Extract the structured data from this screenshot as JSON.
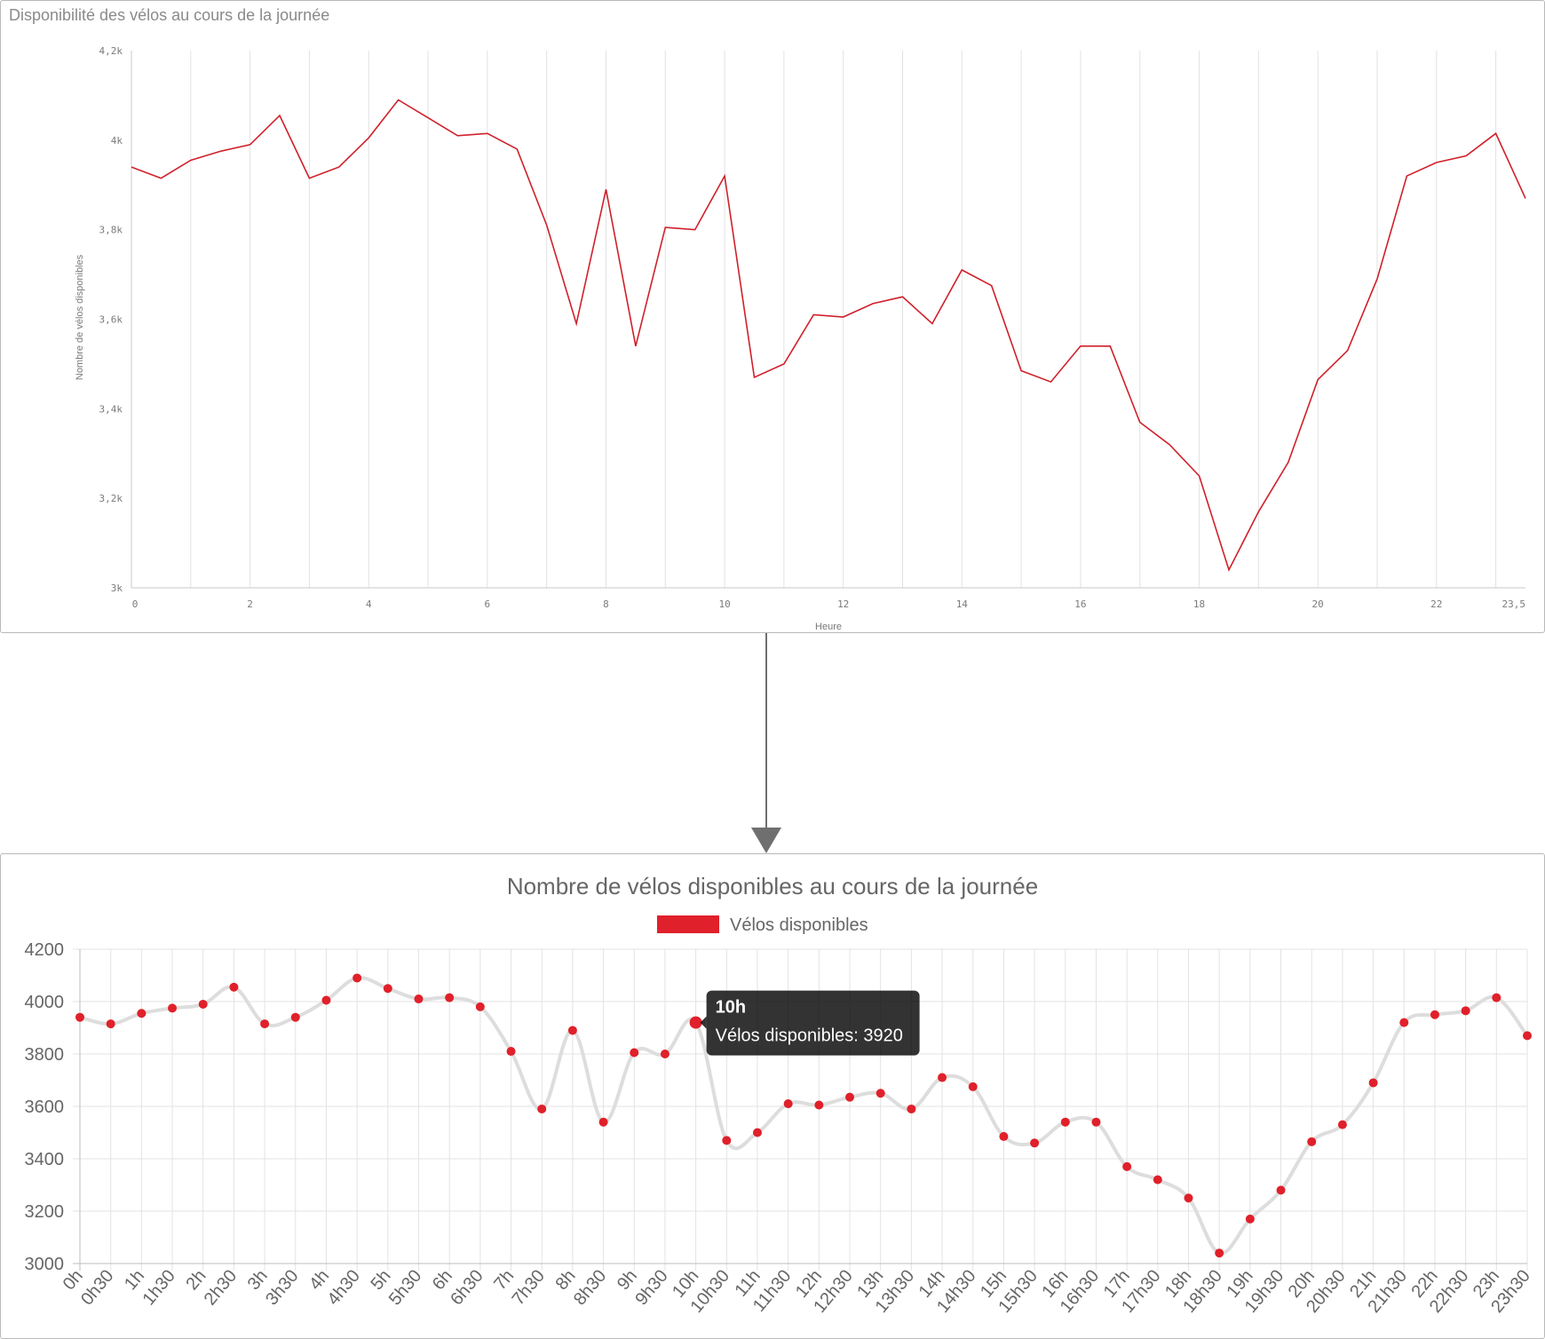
{
  "chart_data": [
    {
      "type": "line",
      "title": "Disponibilité des vélos au cours de la journée",
      "xlabel": "Heure",
      "ylabel": "Nombre de vélos disponibles",
      "xlim": [
        0,
        23.5
      ],
      "ylim": [
        3000,
        4200
      ],
      "x_ticks": [
        0,
        2,
        4,
        6,
        8,
        10,
        12,
        14,
        16,
        18,
        20,
        22,
        23.5
      ],
      "x_tick_labels": [
        "0",
        "2",
        "4",
        "6",
        "8",
        "10",
        "12",
        "14",
        "16",
        "18",
        "20",
        "22",
        "23,5"
      ],
      "y_ticks": [
        3000,
        3200,
        3400,
        3600,
        3800,
        4000,
        4200
      ],
      "y_tick_labels": [
        "3k",
        "3,2k",
        "3,4k",
        "3,6k",
        "3,8k",
        "4k",
        "4,2k"
      ],
      "grid": "vertical",
      "color": "#d0202a",
      "x": [
        0,
        0.5,
        1,
        1.5,
        2,
        2.5,
        3,
        3.5,
        4,
        4.5,
        5,
        5.5,
        6,
        6.5,
        7,
        7.5,
        8,
        8.5,
        9,
        9.5,
        10,
        10.5,
        11,
        11.5,
        12,
        12.5,
        13,
        13.5,
        14,
        14.5,
        15,
        15.5,
        16,
        16.5,
        17,
        17.5,
        18,
        18.5,
        19,
        19.5,
        20,
        20.5,
        21,
        21.5,
        22,
        22.5,
        23,
        23.5
      ],
      "values": [
        3940,
        3915,
        3955,
        3975,
        3990,
        4055,
        3915,
        3940,
        4005,
        4090,
        4050,
        4010,
        4015,
        3980,
        3810,
        3590,
        3890,
        3540,
        3805,
        3800,
        3920,
        3470,
        3500,
        3610,
        3605,
        3635,
        3650,
        3590,
        3710,
        3675,
        3485,
        3460,
        3540,
        3540,
        3370,
        3320,
        3250,
        3040,
        3170,
        3280,
        3465,
        3530,
        3690,
        3920,
        3950,
        3965,
        4015,
        3870
      ]
    },
    {
      "type": "line",
      "title": "Nombre de vélos disponibles au cours de la journée",
      "legend": [
        {
          "name": "Vélos disponibles",
          "color": "#e0202a"
        }
      ],
      "legend_position": "top",
      "ylim": [
        3000,
        4200
      ],
      "y_ticks": [
        "4200",
        "4000",
        "3800",
        "3600",
        "3400",
        "3200",
        "3000"
      ],
      "grid": "both",
      "categories": [
        "0h",
        "0h30",
        "1h",
        "1h30",
        "2h",
        "2h30",
        "3h",
        "3h30",
        "4h",
        "4h30",
        "5h",
        "5h30",
        "6h",
        "6h30",
        "7h",
        "7h30",
        "8h",
        "8h30",
        "9h",
        "9h30",
        "10h",
        "10h30",
        "11h",
        "11h30",
        "12h",
        "12h30",
        "13h",
        "13h30",
        "14h",
        "14h30",
        "15h",
        "15h30",
        "16h",
        "16h30",
        "17h",
        "17h30",
        "18h",
        "18h30",
        "19h",
        "19h30",
        "20h",
        "20h30",
        "21h",
        "21h30",
        "22h",
        "22h30",
        "23h",
        "23h30"
      ],
      "series": [
        {
          "name": "Vélos disponibles",
          "color": "#e0202a",
          "line_color": "#dddddd",
          "values": [
            3940,
            3915,
            3955,
            3975,
            3990,
            4055,
            3915,
            3940,
            4005,
            4090,
            4050,
            4010,
            4015,
            3980,
            3810,
            3590,
            3890,
            3540,
            3805,
            3800,
            3920,
            3470,
            3500,
            3610,
            3605,
            3635,
            3650,
            3590,
            3710,
            3675,
            3485,
            3460,
            3540,
            3540,
            3370,
            3320,
            3250,
            3040,
            3170,
            3280,
            3465,
            3530,
            3690,
            3920,
            3950,
            3965,
            4015,
            3870
          ]
        }
      ],
      "tooltip": {
        "title": "10h",
        "text": "Vélos disponibles: 3920",
        "index": 20
      }
    }
  ]
}
